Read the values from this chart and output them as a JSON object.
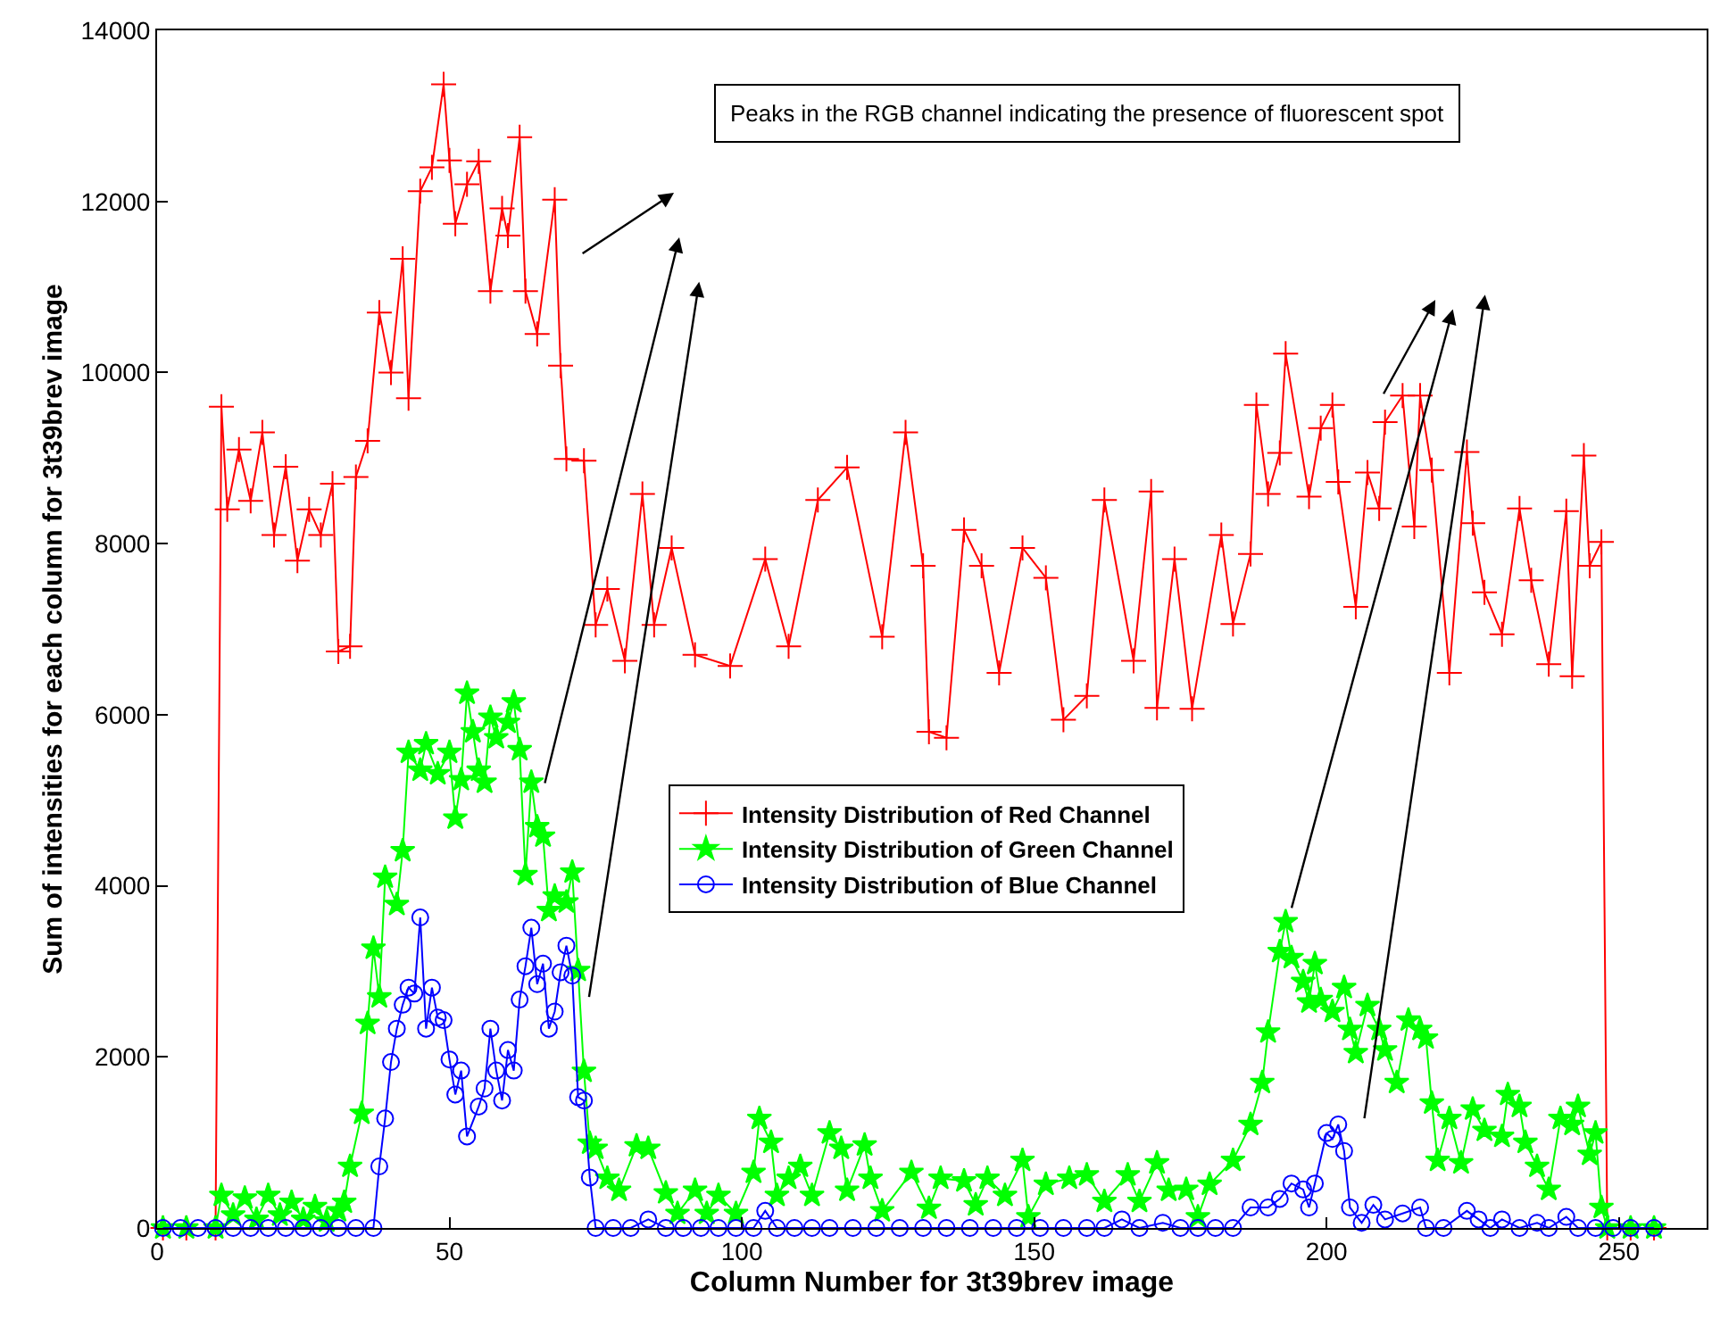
{
  "chart_data": {
    "type": "line",
    "xlabel": "Column Number for 3t39brev image",
    "ylabel": "Sum of intensities for each column for 3t39brev image",
    "xlim": [
      0,
      265
    ],
    "xticks": [
      0,
      50,
      100,
      150,
      200,
      250
    ],
    "ylim": [
      0,
      14000
    ],
    "yticks": [
      0,
      2000,
      4000,
      6000,
      8000,
      10000,
      12000,
      14000
    ],
    "grid": false,
    "legend": "center",
    "annotations": [
      "Peaks in the RGB channel indicating the presence of fluorescent spot"
    ],
    "series": [
      {
        "name": "Intensity Distribution of Red Channel",
        "color": "#ff0000",
        "marker": "cross",
        "x": [
          1,
          5,
          10,
          11,
          12,
          14,
          16,
          18,
          20,
          22,
          24,
          26,
          28,
          30,
          31,
          33,
          34,
          36,
          38,
          40,
          42,
          43,
          45,
          47,
          49,
          50,
          51,
          53,
          55,
          57,
          59,
          60,
          62,
          63,
          65,
          68,
          69,
          70,
          73,
          75,
          77,
          80,
          83,
          85,
          88,
          92,
          98,
          104,
          108,
          113,
          118,
          124,
          128,
          131,
          132,
          135,
          138,
          141,
          144,
          148,
          152,
          155,
          159,
          162,
          167,
          170,
          171,
          174,
          177,
          182,
          184,
          187,
          188,
          190,
          192,
          193,
          197,
          199,
          201,
          202,
          205,
          207,
          209,
          210,
          213,
          215,
          216,
          218,
          221,
          224,
          225,
          227,
          230,
          233,
          235,
          238,
          241,
          242,
          244,
          245,
          247,
          248,
          252,
          256
        ],
        "values": [
          0,
          0,
          0,
          9600,
          8400,
          9100,
          8500,
          9300,
          8100,
          8900,
          7800,
          8400,
          8100,
          8700,
          6740,
          6800,
          8780,
          9200,
          10700,
          10000,
          11330,
          9700,
          12120,
          12400,
          13370,
          12480,
          11740,
          12200,
          12470,
          10950,
          11920,
          11600,
          12750,
          10950,
          10450,
          12020,
          10080,
          8990,
          8970,
          7050,
          7470,
          6630,
          8580,
          7050,
          7950,
          6700,
          6570,
          7820,
          6800,
          8510,
          8890,
          6910,
          9300,
          7740,
          5800,
          5730,
          8160,
          7740,
          6490,
          7950,
          7600,
          5940,
          6220,
          8510,
          6630,
          8610,
          6080,
          7820,
          6070,
          8100,
          7060,
          7880,
          9620,
          8580,
          9060,
          10220,
          8550,
          9350,
          9620,
          8720,
          7260,
          8830,
          8410,
          9420,
          9730,
          8200,
          9730,
          8860,
          6490,
          9070,
          8240,
          7430,
          6940,
          8410,
          7570,
          6590,
          8380,
          6450,
          9030,
          7740,
          8020,
          0,
          0,
          0
        ]
      },
      {
        "name": "Intensity Distribution of Green Channel",
        "color": "#00ff00",
        "marker": "star",
        "x": [
          1,
          5,
          10,
          11,
          13,
          15,
          17,
          19,
          21,
          23,
          25,
          27,
          29,
          31,
          32,
          33,
          35,
          36,
          37,
          38,
          39,
          41,
          42,
          43,
          45,
          46,
          48,
          50,
          51,
          52,
          53,
          54,
          55,
          56,
          57,
          58,
          60,
          61,
          62,
          63,
          64,
          65,
          66,
          67,
          68,
          70,
          71,
          72,
          73,
          74,
          75,
          77,
          79,
          82,
          84,
          87,
          89,
          92,
          94,
          96,
          99,
          102,
          103,
          105,
          106,
          108,
          110,
          112,
          115,
          117,
          118,
          121,
          122,
          124,
          129,
          132,
          134,
          138,
          140,
          142,
          145,
          148,
          149,
          152,
          156,
          159,
          162,
          166,
          168,
          171,
          173,
          176,
          178,
          180,
          184,
          187,
          189,
          190,
          192,
          193,
          194,
          196,
          197,
          198,
          199,
          201,
          203,
          204,
          205,
          207,
          209,
          210,
          212,
          214,
          216,
          217,
          218,
          219,
          221,
          223,
          225,
          227,
          230,
          231,
          233,
          234,
          236,
          238,
          240,
          242,
          243,
          245,
          246,
          247,
          248,
          252,
          256
        ],
        "values": [
          0,
          0,
          0,
          380,
          150,
          350,
          100,
          380,
          150,
          300,
          100,
          250,
          80,
          200,
          300,
          720,
          1340,
          2390,
          3270,
          2700,
          4100,
          3780,
          4410,
          5560,
          5350,
          5660,
          5310,
          5560,
          4790,
          5240,
          6250,
          5800,
          5350,
          5210,
          5970,
          5730,
          5910,
          6150,
          5590,
          4130,
          5210,
          4690,
          4580,
          3710,
          3880,
          3810,
          4160,
          3010,
          1830,
          990,
          930,
          580,
          440,
          960,
          930,
          410,
          170,
          440,
          170,
          380,
          170,
          650,
          1280,
          1000,
          380,
          580,
          720,
          380,
          1110,
          930,
          440,
          970,
          580,
          200,
          650,
          230,
          580,
          550,
          270,
          580,
          380,
          790,
          130,
          510,
          580,
          620,
          310,
          620,
          310,
          760,
          440,
          450,
          130,
          510,
          790,
          1210,
          1700,
          2290,
          3230,
          3580,
          3160,
          2880,
          2640,
          3090,
          2670,
          2530,
          2810,
          2320,
          2050,
          2600,
          2320,
          2080,
          1700,
          2430,
          2320,
          2220,
          1460,
          790,
          1280,
          760,
          1390,
          1140,
          1070,
          1560,
          1420,
          1000,
          720,
          450,
          1280,
          1210,
          1420,
          860,
          1110,
          240,
          0,
          0,
          0
        ]
      },
      {
        "name": "Intensity Distribution of Blue Channel",
        "color": "#0000ff",
        "marker": "circle",
        "x": [
          1,
          4,
          7,
          10,
          13,
          16,
          19,
          22,
          25,
          28,
          31,
          34,
          37,
          38,
          39,
          40,
          41,
          42,
          43,
          44,
          45,
          46,
          47,
          48,
          49,
          50,
          51,
          52,
          53,
          55,
          56,
          57,
          58,
          59,
          60,
          61,
          62,
          63,
          64,
          65,
          66,
          67,
          68,
          69,
          70,
          71,
          72,
          73,
          74,
          75,
          78,
          81,
          84,
          87,
          90,
          93,
          96,
          99,
          102,
          104,
          106,
          109,
          112,
          115,
          119,
          123,
          127,
          131,
          135,
          139,
          143,
          147,
          151,
          155,
          159,
          162,
          165,
          168,
          172,
          175,
          178,
          181,
          184,
          187,
          190,
          192,
          194,
          196,
          197,
          198,
          200,
          201,
          202,
          203,
          204,
          206,
          208,
          210,
          213,
          216,
          217,
          220,
          224,
          226,
          228,
          230,
          233,
          236,
          238,
          241,
          243,
          246,
          249,
          252,
          256
        ],
        "values": [
          0,
          0,
          0,
          0,
          0,
          0,
          0,
          0,
          0,
          0,
          0,
          0,
          0,
          720,
          1280,
          1940,
          2330,
          2610,
          2810,
          2740,
          3630,
          2330,
          2810,
          2460,
          2430,
          1970,
          1560,
          1840,
          1070,
          1420,
          1630,
          2330,
          1840,
          1490,
          2080,
          1840,
          2670,
          3060,
          3510,
          2850,
          3090,
          2330,
          2530,
          2990,
          3300,
          2950,
          1530,
          1490,
          590,
          0,
          0,
          0,
          100,
          0,
          0,
          0,
          0,
          0,
          0,
          200,
          0,
          0,
          0,
          0,
          0,
          0,
          0,
          0,
          0,
          0,
          0,
          0,
          0,
          0,
          0,
          0,
          100,
          0,
          60,
          0,
          0,
          0,
          0,
          240,
          240,
          340,
          520,
          450,
          240,
          520,
          1110,
          1040,
          1210,
          900,
          240,
          60,
          270,
          100,
          170,
          240,
          0,
          0,
          200,
          100,
          0,
          100,
          0,
          60,
          0,
          130,
          0,
          0,
          0,
          0,
          0
        ]
      }
    ]
  }
}
